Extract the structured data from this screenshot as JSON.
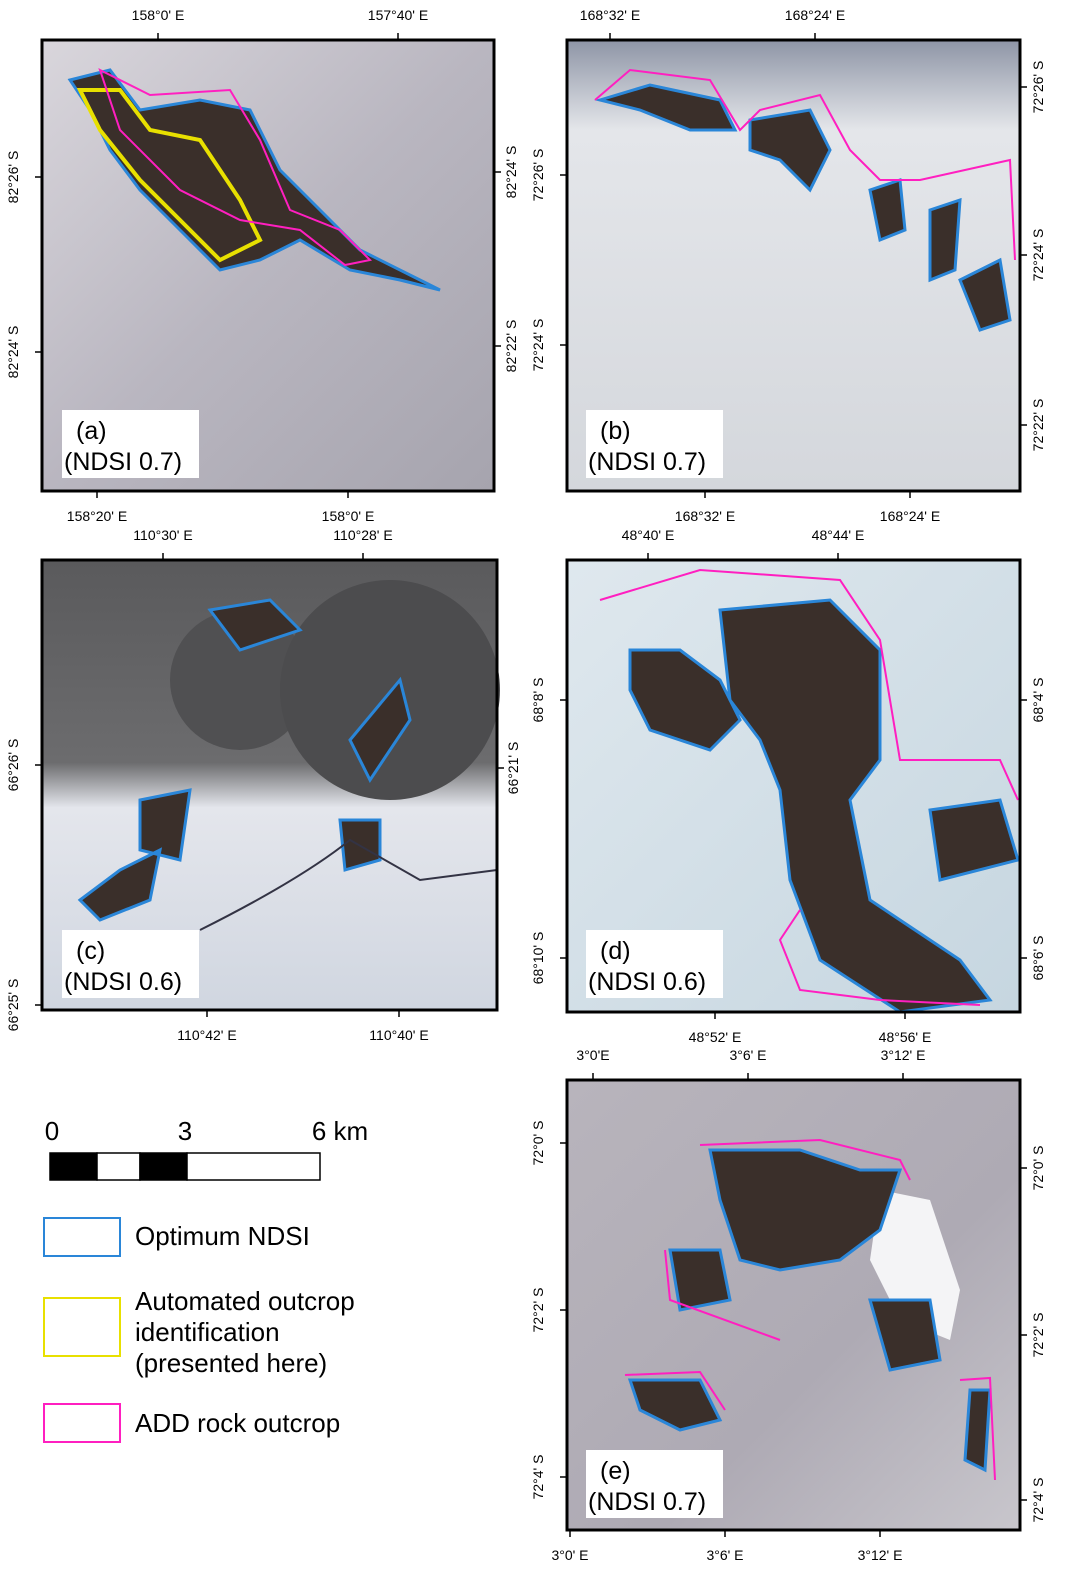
{
  "panels": [
    {
      "label": "(a)",
      "ndsi": "(NDSI 0.7)",
      "top": [
        "158°0' E",
        "157°40' E"
      ],
      "bottom": [
        "158°20' E",
        "158°0' E"
      ],
      "left": [
        "82°26' S",
        "82°24' S"
      ],
      "right": [
        "82°24' S",
        "82°22' S"
      ]
    },
    {
      "label": "(b)",
      "ndsi": "(NDSI 0.7)",
      "top": [
        "168°32' E",
        "168°24' E"
      ],
      "bottom": [
        "168°32' E",
        "168°24' E"
      ],
      "left": [
        "72°26' S",
        "72°24' S"
      ],
      "right": [
        "72°26' S",
        "72°24' S",
        "72°22' S"
      ]
    },
    {
      "label": "(c)",
      "ndsi": "(NDSI 0.6)",
      "top": [
        "110°30' E",
        "110°28' E"
      ],
      "bottom": [
        "110°42' E",
        "110°40' E"
      ],
      "left": [
        "66°26' S",
        "66°25' S"
      ],
      "right": [
        "66°21' S"
      ]
    },
    {
      "label": "(d)",
      "ndsi": "(NDSI 0.6)",
      "top": [
        "48°40' E",
        "48°44' E"
      ],
      "bottom": [
        "48°52' E",
        "48°56' E"
      ],
      "left": [
        "68°8' S",
        "68°10' S"
      ],
      "right": [
        "68°4' S",
        "68°6' S"
      ]
    },
    {
      "label": "(e)",
      "ndsi": "(NDSI 0.7)",
      "top": [
        "3°0'E",
        "3°6' E",
        "3°12' E"
      ],
      "bottom": [
        "3°0' E",
        "3°6' E",
        "3°12' E"
      ],
      "left": [
        "72°0' S",
        "72°2' S",
        "72°4' S"
      ],
      "right": [
        "72°0' S",
        "72°2' S",
        "72°4' S"
      ]
    }
  ],
  "scale_bar": {
    "labels": [
      "0",
      "3",
      "6 km"
    ]
  },
  "legend": [
    {
      "label_lines": [
        "Optimum NDSI"
      ],
      "color": "#2a86d8"
    },
    {
      "label_lines": [
        "Automated outcrop",
        "identification",
        "(presented here)"
      ],
      "color": "#e8e000"
    },
    {
      "label_lines": [
        "ADD  rock outcrop"
      ],
      "color": "#ff1fc0"
    }
  ]
}
